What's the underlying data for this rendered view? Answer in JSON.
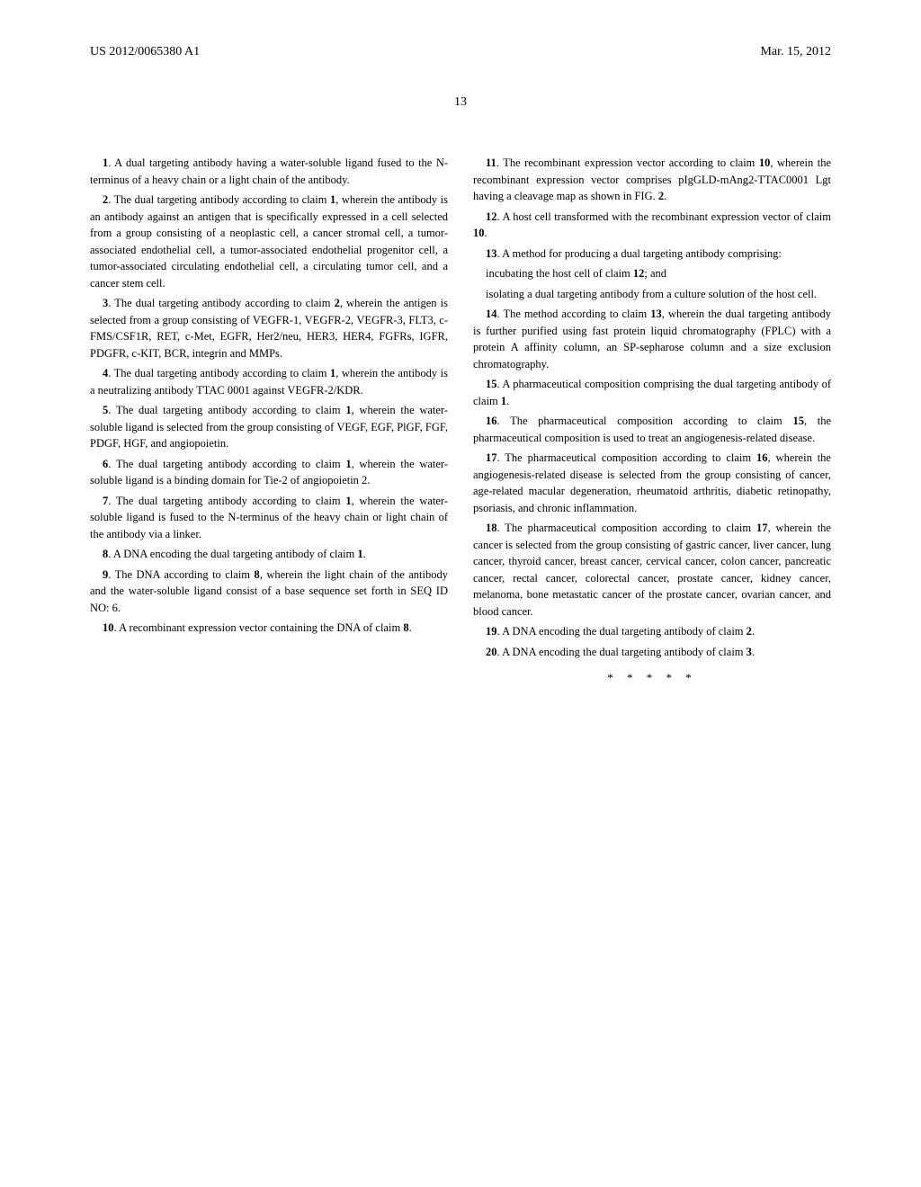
{
  "header": {
    "docNumber": "US 2012/0065380 A1",
    "date": "Mar. 15, 2012"
  },
  "pageNumber": "13",
  "claims": {
    "c1": "A dual targeting antibody having a water-soluble ligand fused to the N-terminus of a heavy chain or a light chain of the antibody.",
    "c2": "The dual targeting antibody according to claim ",
    "c2b": ", wherein the antibody is an antibody against an antigen that is specifically expressed in a cell selected from a group consisting of a neoplastic cell, a cancer stromal cell, a tumor-associated endothelial cell, a tumor-associated endothelial progenitor cell, a tumor-associated circulating endothelial cell, a circulating tumor cell, and a cancer stem cell.",
    "c3": "The dual targeting antibody according to claim ",
    "c3b": ", wherein the antigen is selected from a group consisting of VEGFR-1, VEGFR-2, VEGFR-3, FLT3, c-FMS/CSF1R, RET, c-Met, EGFR, Her2/neu, HER3, HER4, FGFRs, IGFR, PDGFR, c-KIT, BCR, integrin and MMPs.",
    "c4": "The dual targeting antibody according to claim ",
    "c4b": ", wherein the antibody is a neutralizing antibody TTAC 0001 against VEGFR-2/KDR.",
    "c5": "The dual targeting antibody according to claim ",
    "c5b": ", wherein the water-soluble ligand is selected from the group consisting of VEGF, EGF, PlGF, FGF, PDGF, HGF, and angiopoietin.",
    "c6": "The dual targeting antibody according to claim ",
    "c6b": ", wherein the water-soluble ligand is a binding domain for Tie-2 of angiopoietin 2.",
    "c7": "The dual targeting antibody according to claim ",
    "c7b": ", wherein the water-soluble ligand is fused to the N-terminus of the heavy chain or light chain of the antibody via a linker.",
    "c8": "A DNA encoding the dual targeting antibody of claim ",
    "c8b": ".",
    "c9": "The DNA according to claim ",
    "c9b": ", wherein the light chain of the antibody and the water-soluble ligand consist of a base sequence set forth in SEQ ID NO: 6.",
    "c10": "A recombinant expression vector containing the DNA of claim ",
    "c10b": ".",
    "c11": "The recombinant expression vector according to claim ",
    "c11b": ", wherein the recombinant expression vector comprises pIgGLD-mAng2-TTAC0001 Lgt having a cleavage map as shown in FIG. ",
    "c11c": ".",
    "c12": "A host cell transformed with the recombinant expression vector of claim ",
    "c12b": ".",
    "c13": "A method for producing a dual targeting antibody comprising:",
    "c13sub1": "incubating the host cell of claim ",
    "c13sub1b": "; and",
    "c13sub2": "isolating a dual targeting antibody from a culture solution of the host cell.",
    "c14": "The method according to claim ",
    "c14b": ", wherein the dual targeting antibody is further purified using fast protein liquid chromatography (FPLC) with a protein A affinity column, an SP-sepharose column and a size exclusion chromatography.",
    "c15": "A pharmaceutical composition comprising the dual targeting antibody of claim ",
    "c15b": ".",
    "c16": "The pharmaceutical composition according to claim ",
    "c16b": ", the pharmaceutical composition is used to treat an angiogenesis-related disease.",
    "c17": "The pharmaceutical composition according to claim ",
    "c17b": ", wherein the angiogenesis-related disease is selected from the group consisting of cancer, age-related macular degeneration, rheumatoid arthritis, diabetic retinopathy, psoriasis, and chronic inflammation.",
    "c18": "The pharmaceutical composition according to claim ",
    "c18b": ", wherein the cancer is selected from the group consisting of gastric cancer, liver cancer, lung cancer, thyroid cancer, breast cancer, cervical cancer, colon cancer, pancreatic cancer, rectal cancer, colorectal cancer, prostate cancer, kidney cancer, melanoma, bone metastatic cancer of the prostate cancer, ovarian cancer, and blood cancer.",
    "c19": "A DNA encoding the dual targeting antibody of claim ",
    "c19b": ".",
    "c20": "A DNA encoding the dual targeting antibody of claim ",
    "c20b": "."
  },
  "refs": {
    "r1": "1",
    "r2": "2",
    "r3": "3",
    "r8": "8",
    "r10": "10",
    "r12": "12",
    "r13": "13",
    "r15": "15",
    "r16": "16",
    "r17": "17",
    "fig2": "2"
  },
  "nums": {
    "n1": "1",
    "n2": "2",
    "n3": "3",
    "n4": "4",
    "n5": "5",
    "n6": "6",
    "n7": "7",
    "n8": "8",
    "n9": "9",
    "n10": "10",
    "n11": "11",
    "n12": "12",
    "n13": "13",
    "n14": "14",
    "n15": "15",
    "n16": "16",
    "n17": "17",
    "n18": "18",
    "n19": "19",
    "n20": "20"
  },
  "endMarker": "* * * * *"
}
